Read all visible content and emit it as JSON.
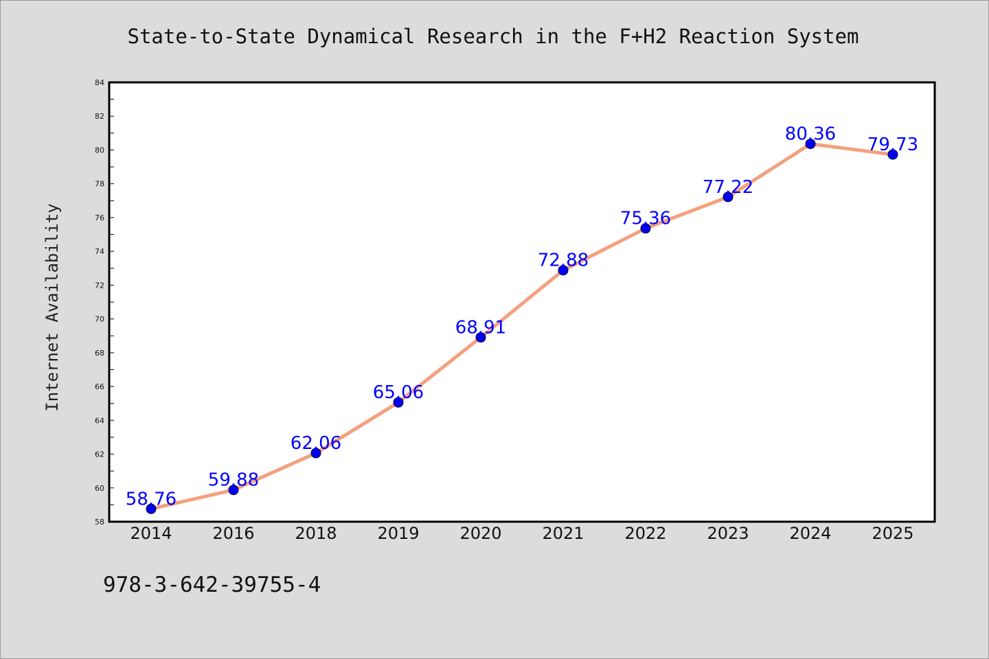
{
  "chart_data": {
    "type": "line",
    "title": "State-to-State Dynamical Research in the F+H2 Reaction System",
    "xlabel": "",
    "ylabel": "Internet Availability",
    "categories": [
      "2014",
      "2016",
      "2018",
      "2019",
      "2020",
      "2021",
      "2022",
      "2023",
      "2024",
      "2025"
    ],
    "values": [
      58.76,
      59.88,
      62.06,
      65.06,
      68.91,
      72.88,
      75.36,
      77.22,
      80.36,
      79.73
    ],
    "data_labels": [
      "58.76",
      "59.88",
      "62.06",
      "65.06",
      "68.91",
      "72.88",
      "75.36",
      "77.22",
      "80.36",
      "79.73"
    ],
    "yticks": [
      "58",
      "60",
      "62",
      "64",
      "66",
      "68",
      "70",
      "72",
      "74",
      "76",
      "78",
      "80",
      "82",
      "84"
    ],
    "ylim": [
      58,
      84
    ],
    "grid": false,
    "legend": "none",
    "colors": {
      "line": "#f4a07e",
      "marker": "#0000ee",
      "label": "#0000ff",
      "plot_bg": "#ffffff",
      "page_bg": "#dcdcdc"
    }
  },
  "footer": {
    "isbn": "978-3-642-39755-4"
  }
}
